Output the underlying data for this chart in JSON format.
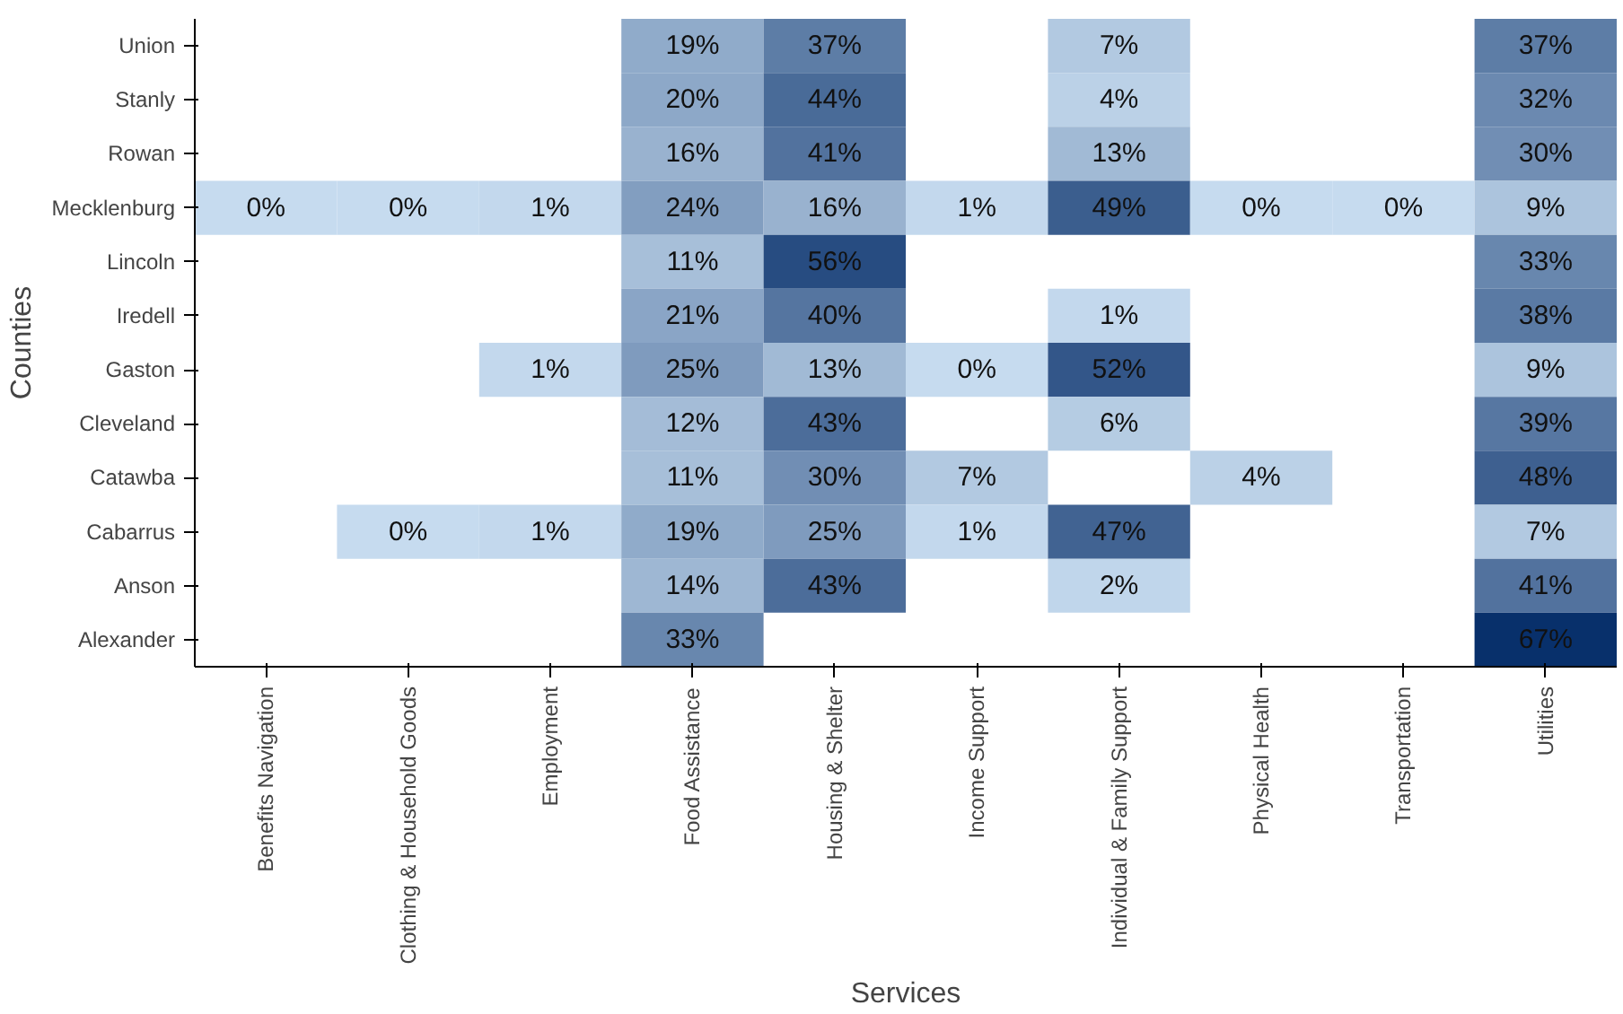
{
  "chart_data": {
    "type": "heatmap",
    "xlabel": "Services",
    "ylabel": "Counties",
    "categories": [
      "Benefits Navigation",
      "Clothing & Household Goods",
      "Employment",
      "Food Assistance",
      "Housing & Shelter",
      "Income Support",
      "Individual & Family Support",
      "Physical Health",
      "Transportation",
      "Utilities"
    ],
    "y_categories": [
      "Union",
      "Stanly",
      "Rowan",
      "Mecklenburg",
      "Lincoln",
      "Iredell",
      "Gaston",
      "Cleveland",
      "Catawba",
      "Cabarrus",
      "Anson",
      "Alexander"
    ],
    "cells": [
      [
        null,
        null,
        null,
        19,
        37,
        null,
        7,
        null,
        null,
        37
      ],
      [
        null,
        null,
        null,
        20,
        44,
        null,
        4,
        null,
        null,
        32
      ],
      [
        null,
        null,
        null,
        16,
        41,
        null,
        13,
        null,
        null,
        30
      ],
      [
        0,
        0,
        1,
        24,
        16,
        1,
        49,
        0,
        0,
        9
      ],
      [
        null,
        null,
        null,
        11,
        56,
        null,
        null,
        null,
        null,
        33
      ],
      [
        null,
        null,
        null,
        21,
        40,
        null,
        1,
        null,
        null,
        38
      ],
      [
        null,
        null,
        1,
        25,
        13,
        0,
        52,
        null,
        null,
        9
      ],
      [
        null,
        null,
        null,
        12,
        43,
        null,
        6,
        null,
        null,
        39
      ],
      [
        null,
        null,
        null,
        11,
        30,
        7,
        null,
        4,
        null,
        48
      ],
      [
        null,
        0,
        1,
        19,
        25,
        1,
        47,
        null,
        null,
        7
      ],
      [
        null,
        null,
        null,
        14,
        43,
        null,
        2,
        null,
        null,
        41
      ],
      [
        null,
        null,
        null,
        33,
        null,
        null,
        null,
        null,
        null,
        67
      ]
    ],
    "cell_labels": [
      [
        null,
        null,
        null,
        "19%",
        "37%",
        null,
        "7%",
        null,
        null,
        "37%"
      ],
      [
        null,
        null,
        null,
        "20%",
        "44%",
        null,
        "4%",
        null,
        null,
        "32%"
      ],
      [
        null,
        null,
        null,
        "16%",
        "41%",
        null,
        "13%",
        null,
        null,
        "30%"
      ],
      [
        "0%",
        "0%",
        "1%",
        "24%",
        "16%",
        "1%",
        "49%",
        "0%",
        "0%",
        "9%"
      ],
      [
        null,
        null,
        null,
        "11%",
        "56%",
        null,
        null,
        null,
        null,
        "33%"
      ],
      [
        null,
        null,
        null,
        "21%",
        "40%",
        null,
        "1%",
        null,
        null,
        "38%"
      ],
      [
        null,
        null,
        "1%",
        "25%",
        "13%",
        "0%",
        "52%",
        null,
        null,
        "9%"
      ],
      [
        null,
        null,
        null,
        "12%",
        "43%",
        null,
        "6%",
        null,
        null,
        "39%"
      ],
      [
        null,
        null,
        null,
        "11%",
        "30%",
        "7%",
        null,
        "4%",
        null,
        "48%"
      ],
      [
        null,
        "0%",
        "1%",
        "19%",
        "25%",
        "1%",
        "47%",
        null,
        null,
        "7%"
      ],
      [
        null,
        null,
        null,
        "14%",
        "43%",
        null,
        "2%",
        null,
        null,
        "41%"
      ],
      [
        null,
        null,
        null,
        "33%",
        null,
        null,
        null,
        null,
        null,
        "67%"
      ]
    ]
  }
}
